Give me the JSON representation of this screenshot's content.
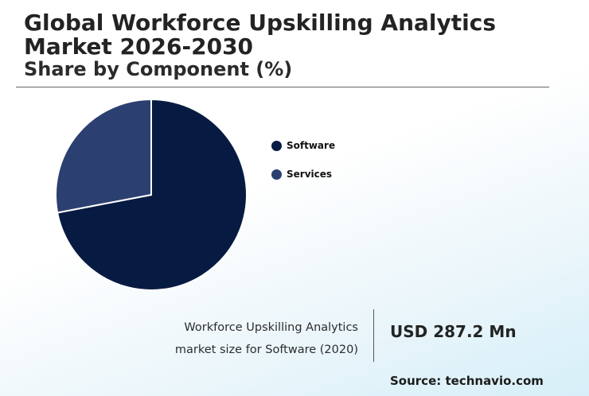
{
  "header": {
    "title": "Global Workforce Upskilling Analytics Market 2026-2030",
    "subtitle": "Share by Component (%)"
  },
  "chart_data": {
    "type": "pie",
    "title": "Global Workforce Upskilling Analytics Market 2026-2030",
    "subtitle": "Share by Component (%)",
    "categories": [
      "Software",
      "Services"
    ],
    "values": [
      72,
      28
    ],
    "colors": [
      "#071b42",
      "#2b3f70"
    ],
    "start_angle_deg": 0,
    "direction": "clockwise",
    "legend": "right"
  },
  "stat": {
    "description_line1": "Workforce Upskilling Analytics",
    "description_line2": "market size for Software (2020)",
    "value": "USD 287.2 Mn"
  },
  "footer": {
    "source": "Source: technavio.com"
  }
}
